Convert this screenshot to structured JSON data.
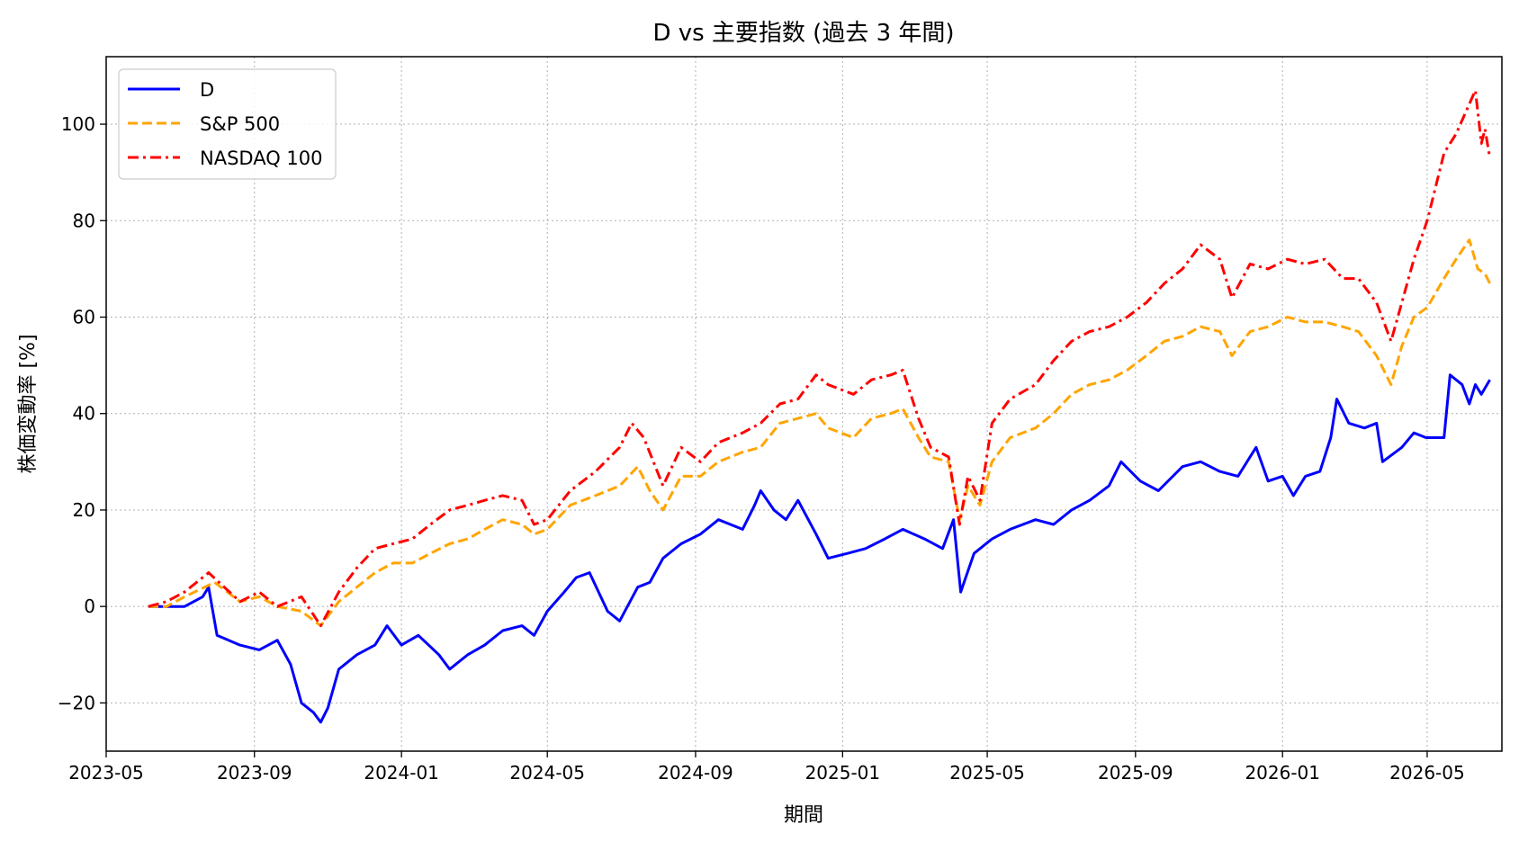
{
  "chart_data": {
    "type": "line",
    "title": "D vs 主要指数 (過去 3 年間)",
    "xlabel": "期間",
    "ylabel": "株価変動率 [%]",
    "xlim": [
      "2023-05-01",
      "2026-07-02"
    ],
    "ylim": [
      -30,
      114
    ],
    "x_ticks": [
      "2023-05",
      "2023-09",
      "2024-01",
      "2024-05",
      "2024-09",
      "2025-01",
      "2025-05",
      "2025-09",
      "2026-01",
      "2026-05"
    ],
    "y_ticks": [
      -20,
      0,
      20,
      40,
      60,
      80,
      100
    ],
    "grid": true,
    "legend_position": "top-left",
    "series": [
      {
        "name": "D",
        "color": "#0000ff",
        "line_style": "solid",
        "points": [
          [
            "2023-06-05",
            0
          ],
          [
            "2023-06-20",
            0
          ],
          [
            "2023-07-05",
            0
          ],
          [
            "2023-07-20",
            2
          ],
          [
            "2023-07-25",
            4
          ],
          [
            "2023-08-01",
            -6
          ],
          [
            "2023-08-20",
            -8
          ],
          [
            "2023-09-05",
            -9
          ],
          [
            "2023-09-20",
            -7
          ],
          [
            "2023-10-01",
            -12
          ],
          [
            "2023-10-10",
            -20
          ],
          [
            "2023-10-20",
            -22
          ],
          [
            "2023-10-26",
            -24
          ],
          [
            "2023-11-01",
            -21
          ],
          [
            "2023-11-10",
            -13
          ],
          [
            "2023-11-25",
            -10
          ],
          [
            "2023-12-10",
            -8
          ],
          [
            "2023-12-20",
            -4
          ],
          [
            "2024-01-01",
            -8
          ],
          [
            "2024-01-15",
            -6
          ],
          [
            "2024-02-01",
            -10
          ],
          [
            "2024-02-10",
            -13
          ],
          [
            "2024-02-25",
            -10
          ],
          [
            "2024-03-10",
            -8
          ],
          [
            "2024-03-25",
            -5
          ],
          [
            "2024-04-10",
            -4
          ],
          [
            "2024-04-20",
            -6
          ],
          [
            "2024-05-01",
            -1
          ],
          [
            "2024-05-15",
            3
          ],
          [
            "2024-05-25",
            6
          ],
          [
            "2024-06-05",
            7
          ],
          [
            "2024-06-20",
            -1
          ],
          [
            "2024-06-30",
            -3
          ],
          [
            "2024-07-15",
            4
          ],
          [
            "2024-07-25",
            5
          ],
          [
            "2024-08-05",
            10
          ],
          [
            "2024-08-20",
            13
          ],
          [
            "2024-09-05",
            15
          ],
          [
            "2024-09-20",
            18
          ],
          [
            "2024-10-10",
            16
          ],
          [
            "2024-10-20",
            21
          ],
          [
            "2024-10-25",
            24
          ],
          [
            "2024-11-05",
            20
          ],
          [
            "2024-11-15",
            18
          ],
          [
            "2024-11-25",
            22
          ],
          [
            "2024-12-10",
            15
          ],
          [
            "2024-12-20",
            10
          ],
          [
            "2025-01-05",
            11
          ],
          [
            "2025-01-20",
            12
          ],
          [
            "2025-02-05",
            14
          ],
          [
            "2025-02-20",
            16
          ],
          [
            "2025-03-10",
            14
          ],
          [
            "2025-03-25",
            12
          ],
          [
            "2025-04-03",
            18
          ],
          [
            "2025-04-09",
            3
          ],
          [
            "2025-04-20",
            11
          ],
          [
            "2025-05-05",
            14
          ],
          [
            "2025-05-20",
            16
          ],
          [
            "2025-06-10",
            18
          ],
          [
            "2025-06-25",
            17
          ],
          [
            "2025-07-10",
            20
          ],
          [
            "2025-07-25",
            22
          ],
          [
            "2025-08-10",
            25
          ],
          [
            "2025-08-20",
            30
          ],
          [
            "2025-09-05",
            26
          ],
          [
            "2025-09-20",
            24
          ],
          [
            "2025-10-10",
            29
          ],
          [
            "2025-10-25",
            30
          ],
          [
            "2025-11-10",
            28
          ],
          [
            "2025-11-25",
            27
          ],
          [
            "2025-12-10",
            33
          ],
          [
            "2025-12-20",
            26
          ],
          [
            "2026-01-01",
            27
          ],
          [
            "2026-01-10",
            23
          ],
          [
            "2026-01-20",
            27
          ],
          [
            "2026-02-01",
            28
          ],
          [
            "2026-02-10",
            35
          ],
          [
            "2026-02-15",
            43
          ],
          [
            "2026-02-25",
            38
          ],
          [
            "2026-03-10",
            37
          ],
          [
            "2026-03-20",
            38
          ],
          [
            "2026-03-25",
            30
          ],
          [
            "2026-04-10",
            33
          ],
          [
            "2026-04-20",
            36
          ],
          [
            "2026-04-30",
            35
          ],
          [
            "2026-05-15",
            35
          ],
          [
            "2026-05-20",
            48
          ],
          [
            "2026-05-30",
            46
          ],
          [
            "2026-06-05",
            42
          ],
          [
            "2026-06-10",
            46
          ],
          [
            "2026-06-15",
            44
          ],
          [
            "2026-06-22",
            47
          ]
        ]
      },
      {
        "name": "S&P 500",
        "color": "#ffa500",
        "line_style": "dashed",
        "points": [
          [
            "2023-06-05",
            0
          ],
          [
            "2023-06-20",
            0
          ],
          [
            "2023-07-05",
            2
          ],
          [
            "2023-07-30",
            5
          ],
          [
            "2023-08-20",
            1
          ],
          [
            "2023-09-05",
            2
          ],
          [
            "2023-09-20",
            0
          ],
          [
            "2023-10-10",
            -1
          ],
          [
            "2023-10-26",
            -4
          ],
          [
            "2023-11-10",
            1
          ],
          [
            "2023-11-25",
            4
          ],
          [
            "2023-12-10",
            7
          ],
          [
            "2023-12-25",
            9
          ],
          [
            "2024-01-10",
            9
          ],
          [
            "2024-01-25",
            11
          ],
          [
            "2024-02-10",
            13
          ],
          [
            "2024-02-25",
            14
          ],
          [
            "2024-03-10",
            16
          ],
          [
            "2024-03-25",
            18
          ],
          [
            "2024-04-10",
            17
          ],
          [
            "2024-04-20",
            15
          ],
          [
            "2024-05-01",
            16
          ],
          [
            "2024-05-20",
            21
          ],
          [
            "2024-06-10",
            23
          ],
          [
            "2024-06-30",
            25
          ],
          [
            "2024-07-15",
            29
          ],
          [
            "2024-07-25",
            24
          ],
          [
            "2024-08-05",
            20
          ],
          [
            "2024-08-20",
            27
          ],
          [
            "2024-09-05",
            27
          ],
          [
            "2024-09-20",
            30
          ],
          [
            "2024-10-10",
            32
          ],
          [
            "2024-10-25",
            33
          ],
          [
            "2024-11-10",
            38
          ],
          [
            "2024-11-25",
            39
          ],
          [
            "2024-12-10",
            40
          ],
          [
            "2024-12-20",
            37
          ],
          [
            "2025-01-10",
            35
          ],
          [
            "2025-01-25",
            39
          ],
          [
            "2025-02-10",
            40
          ],
          [
            "2025-02-20",
            41
          ],
          [
            "2025-03-05",
            35
          ],
          [
            "2025-03-15",
            31
          ],
          [
            "2025-03-30",
            30
          ],
          [
            "2025-04-08",
            18
          ],
          [
            "2025-04-15",
            25
          ],
          [
            "2025-04-25",
            21
          ],
          [
            "2025-05-05",
            30
          ],
          [
            "2025-05-20",
            35
          ],
          [
            "2025-06-10",
            37
          ],
          [
            "2025-06-25",
            40
          ],
          [
            "2025-07-10",
            44
          ],
          [
            "2025-07-25",
            46
          ],
          [
            "2025-08-10",
            47
          ],
          [
            "2025-08-25",
            49
          ],
          [
            "2025-09-10",
            52
          ],
          [
            "2025-09-25",
            55
          ],
          [
            "2025-10-10",
            56
          ],
          [
            "2025-10-25",
            58
          ],
          [
            "2025-11-10",
            57
          ],
          [
            "2025-11-20",
            52
          ],
          [
            "2025-12-05",
            57
          ],
          [
            "2025-12-20",
            58
          ],
          [
            "2026-01-05",
            60
          ],
          [
            "2026-01-20",
            59
          ],
          [
            "2026-02-05",
            59
          ],
          [
            "2026-02-20",
            58
          ],
          [
            "2026-03-05",
            57
          ],
          [
            "2026-03-20",
            52
          ],
          [
            "2026-04-01",
            46
          ],
          [
            "2026-04-10",
            54
          ],
          [
            "2026-04-20",
            60
          ],
          [
            "2026-05-01",
            62
          ],
          [
            "2026-05-15",
            68
          ],
          [
            "2026-05-25",
            72
          ],
          [
            "2026-06-05",
            76
          ],
          [
            "2026-06-12",
            70
          ],
          [
            "2026-06-18",
            69
          ],
          [
            "2026-06-22",
            67
          ]
        ]
      },
      {
        "name": "NASDAQ 100",
        "color": "#ff0000",
        "line_style": "dashdot",
        "points": [
          [
            "2023-06-05",
            0
          ],
          [
            "2023-06-20",
            1
          ],
          [
            "2023-07-05",
            3
          ],
          [
            "2023-07-25",
            7
          ],
          [
            "2023-08-20",
            1
          ],
          [
            "2023-09-05",
            3
          ],
          [
            "2023-09-20",
            0
          ],
          [
            "2023-10-10",
            2
          ],
          [
            "2023-10-26",
            -4
          ],
          [
            "2023-11-10",
            3
          ],
          [
            "2023-11-25",
            8
          ],
          [
            "2023-12-10",
            12
          ],
          [
            "2023-12-25",
            13
          ],
          [
            "2024-01-10",
            14
          ],
          [
            "2024-01-25",
            17
          ],
          [
            "2024-02-10",
            20
          ],
          [
            "2024-02-25",
            21
          ],
          [
            "2024-03-10",
            22
          ],
          [
            "2024-03-25",
            23
          ],
          [
            "2024-04-10",
            22
          ],
          [
            "2024-04-20",
            17
          ],
          [
            "2024-05-01",
            18
          ],
          [
            "2024-05-20",
            24
          ],
          [
            "2024-06-10",
            28
          ],
          [
            "2024-06-30",
            33
          ],
          [
            "2024-07-10",
            38
          ],
          [
            "2024-07-20",
            35
          ],
          [
            "2024-08-05",
            25
          ],
          [
            "2024-08-20",
            33
          ],
          [
            "2024-09-05",
            30
          ],
          [
            "2024-09-20",
            34
          ],
          [
            "2024-10-10",
            36
          ],
          [
            "2024-10-25",
            38
          ],
          [
            "2024-11-10",
            42
          ],
          [
            "2024-11-25",
            43
          ],
          [
            "2024-12-10",
            48
          ],
          [
            "2024-12-20",
            46
          ],
          [
            "2025-01-10",
            44
          ],
          [
            "2025-01-25",
            47
          ],
          [
            "2025-02-10",
            48
          ],
          [
            "2025-02-20",
            49
          ],
          [
            "2025-03-05",
            39
          ],
          [
            "2025-03-15",
            33
          ],
          [
            "2025-03-30",
            31
          ],
          [
            "2025-04-08",
            17
          ],
          [
            "2025-04-15",
            27
          ],
          [
            "2025-04-25",
            22
          ],
          [
            "2025-05-05",
            38
          ],
          [
            "2025-05-20",
            43
          ],
          [
            "2025-06-10",
            46
          ],
          [
            "2025-06-25",
            51
          ],
          [
            "2025-07-10",
            55
          ],
          [
            "2025-07-25",
            57
          ],
          [
            "2025-08-10",
            58
          ],
          [
            "2025-08-25",
            60
          ],
          [
            "2025-09-10",
            63
          ],
          [
            "2025-09-25",
            67
          ],
          [
            "2025-10-10",
            70
          ],
          [
            "2025-10-25",
            75
          ],
          [
            "2025-11-10",
            72
          ],
          [
            "2025-11-20",
            64
          ],
          [
            "2025-12-05",
            71
          ],
          [
            "2025-12-20",
            70
          ],
          [
            "2026-01-05",
            72
          ],
          [
            "2026-01-20",
            71
          ],
          [
            "2026-02-05",
            72
          ],
          [
            "2026-02-20",
            68
          ],
          [
            "2026-03-05",
            68
          ],
          [
            "2026-03-20",
            63
          ],
          [
            "2026-04-01",
            55
          ],
          [
            "2026-04-10",
            63
          ],
          [
            "2026-04-20",
            72
          ],
          [
            "2026-05-01",
            80
          ],
          [
            "2026-05-15",
            94
          ],
          [
            "2026-05-25",
            98
          ],
          [
            "2026-06-10",
            107
          ],
          [
            "2026-06-15",
            96
          ],
          [
            "2026-06-18",
            99
          ],
          [
            "2026-06-22",
            93
          ]
        ]
      }
    ]
  }
}
